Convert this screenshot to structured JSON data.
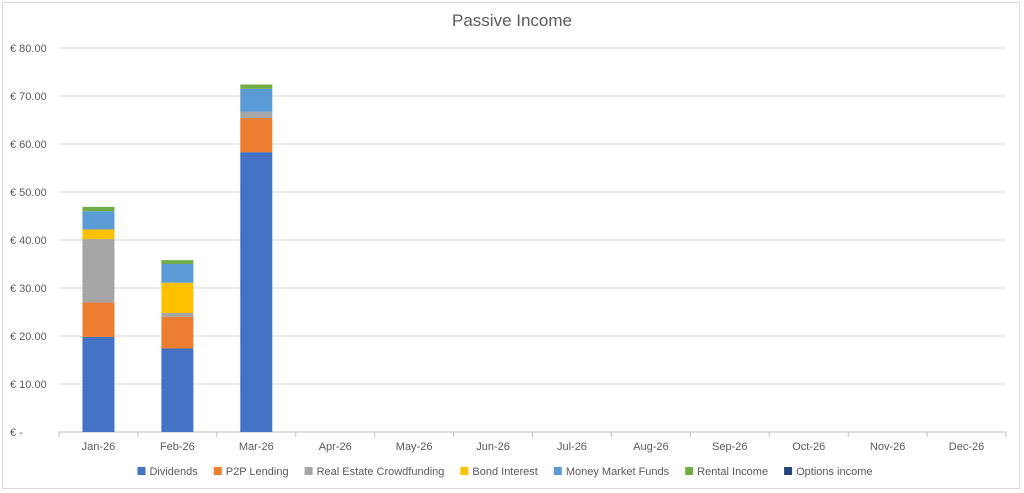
{
  "chart_data": {
    "type": "bar",
    "stacked": true,
    "title": "Passive Income",
    "xlabel": "",
    "ylabel": "",
    "ylim": [
      0,
      80
    ],
    "yticks": [
      "€ -",
      "€ 10.00",
      "€ 20.00",
      "€ 30.00",
      "€ 40.00",
      "€ 50.00",
      "€ 60.00",
      "€ 70.00",
      "€ 80.00"
    ],
    "grid": true,
    "legend_position": "bottom",
    "categories": [
      "Jan-26",
      "Feb-26",
      "Mar-26",
      "Apr-26",
      "May-26",
      "Jun-26",
      "Jul-26",
      "Aug-26",
      "Sep-26",
      "Oct-26",
      "Nov-26",
      "Dec-26"
    ],
    "series": [
      {
        "name": "Dividends",
        "color": "#4472C4",
        "values": [
          19.8,
          17.4,
          58.3,
          0,
          0,
          0,
          0,
          0,
          0,
          0,
          0,
          0
        ]
      },
      {
        "name": "P2P Lending",
        "color": "#ED7D31",
        "values": [
          7.2,
          6.6,
          7.1,
          0,
          0,
          0,
          0,
          0,
          0,
          0,
          0,
          0
        ]
      },
      {
        "name": "Real Estate Crowdfunding",
        "color": "#A5A5A5",
        "values": [
          13.2,
          0.8,
          1.3,
          0,
          0,
          0,
          0,
          0,
          0,
          0,
          0,
          0
        ]
      },
      {
        "name": "Bond Interest",
        "color": "#FFC000",
        "values": [
          2.0,
          6.3,
          0,
          0,
          0,
          0,
          0,
          0,
          0,
          0,
          0,
          0
        ]
      },
      {
        "name": "Money Market Funds",
        "color": "#5B9BD5",
        "values": [
          3.8,
          3.9,
          4.8,
          0,
          0,
          0,
          0,
          0,
          0,
          0,
          0,
          0
        ]
      },
      {
        "name": "Rental Income",
        "color": "#70AD47",
        "values": [
          0.9,
          0.8,
          0.9,
          0,
          0,
          0,
          0,
          0,
          0,
          0,
          0,
          0
        ]
      },
      {
        "name": "Options income",
        "color": "#264478",
        "values": [
          0,
          0,
          0,
          0,
          0,
          0,
          0,
          0,
          0,
          0,
          0,
          0
        ]
      }
    ]
  }
}
